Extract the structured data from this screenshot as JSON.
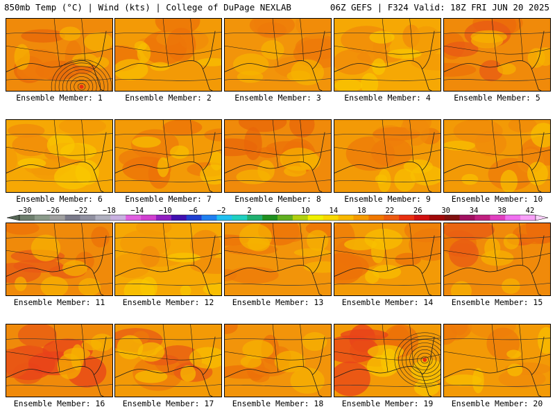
{
  "header": {
    "left": "850mb Temp (°C) | Wind (kts) | College of DuPage NEXLAB",
    "right": "06Z GEFS | F324 Valid: 18Z FRI JUN 20 2025"
  },
  "members": [
    {
      "label": "Ensemble Member: 1",
      "base": "#f08a0a",
      "warm": [
        "#e8650a",
        "#ee7a0a"
      ],
      "cool": "#f7b400",
      "low": true
    },
    {
      "label": "Ensemble Member: 2",
      "base": "#f39a06",
      "warm": [
        "#ec7008",
        "#f08a0a"
      ],
      "cool": "#f8c000",
      "low": false
    },
    {
      "label": "Ensemble Member: 3",
      "base": "#f2940a",
      "warm": [
        "#ee7a0a",
        "#f08a0a"
      ],
      "cool": "#f7b400",
      "low": false
    },
    {
      "label": "Ensemble Member: 4",
      "base": "#f6a804",
      "warm": [
        "#f08a0a",
        "#f39a06"
      ],
      "cool": "#f9c800",
      "low": false
    },
    {
      "label": "Ensemble Member: 5",
      "base": "#f08a0a",
      "warm": [
        "#e85a14",
        "#ec7008"
      ],
      "cool": "#f7b400",
      "low": false
    },
    {
      "label": "Ensemble Member: 6",
      "base": "#f6a804",
      "warm": [
        "#f39a06",
        "#f08a0a"
      ],
      "cool": "#f9c800",
      "low": false
    },
    {
      "label": "Ensemble Member: 7",
      "base": "#f39a06",
      "warm": [
        "#ee7a0a",
        "#ec7008"
      ],
      "cool": "#f8c000",
      "low": false
    },
    {
      "label": "Ensemble Member: 8",
      "base": "#f08a0a",
      "warm": [
        "#e8650a",
        "#ec7008"
      ],
      "cool": "#f7b400",
      "low": false
    },
    {
      "label": "Ensemble Member: 9",
      "base": "#f39a06",
      "warm": [
        "#ee7a0a",
        "#f08a0a"
      ],
      "cool": "#f8c000",
      "low": false
    },
    {
      "label": "Ensemble Member: 10",
      "base": "#f39a06",
      "warm": [
        "#f08a0a",
        "#ee7a0a"
      ],
      "cool": "#f8c000",
      "low": false
    },
    {
      "label": "Ensemble Member: 11",
      "base": "#f08a0a",
      "warm": [
        "#e85a14",
        "#ec7008"
      ],
      "cool": "#f7b400",
      "low": false
    },
    {
      "label": "Ensemble Member: 12",
      "base": "#f6a804",
      "warm": [
        "#f39a06",
        "#f08a0a"
      ],
      "cool": "#f9c800",
      "low": false
    },
    {
      "label": "Ensemble Member: 13",
      "base": "#f2940a",
      "warm": [
        "#ee7a0a",
        "#ec7008"
      ],
      "cool": "#f7b400",
      "low": false
    },
    {
      "label": "Ensemble Member: 14",
      "base": "#f39a06",
      "warm": [
        "#ee7a0a",
        "#ec7008"
      ],
      "cool": "#f8c000",
      "low": false
    },
    {
      "label": "Ensemble Member: 15",
      "base": "#f08a0a",
      "warm": [
        "#e85a14",
        "#ec7008"
      ],
      "cool": "#f7b400",
      "low": false
    },
    {
      "label": "Ensemble Member: 16",
      "base": "#f08a0a",
      "warm": [
        "#e8421a",
        "#e85a14"
      ],
      "cool": "#f7b400",
      "low": false
    },
    {
      "label": "Ensemble Member: 17",
      "base": "#f39a06",
      "warm": [
        "#e85a14",
        "#ee7a0a"
      ],
      "cool": "#f8c000",
      "low": false
    },
    {
      "label": "Ensemble Member: 18",
      "base": "#f2940a",
      "warm": [
        "#ec7008",
        "#ee7a0a"
      ],
      "cool": "#f7b400",
      "low": false
    },
    {
      "label": "Ensemble Member: 19",
      "base": "#f39a06",
      "warm": [
        "#e8421a",
        "#ec7008"
      ],
      "cool": "#f9c800",
      "low": true
    },
    {
      "label": "Ensemble Member: 20",
      "base": "#f39a06",
      "warm": [
        "#ee7a0a",
        "#f08a0a"
      ],
      "cool": "#f8c000",
      "low": false
    }
  ],
  "colorbar": {
    "ticks": [
      "−30",
      "−26",
      "−22",
      "−18",
      "−14",
      "−10",
      "−6",
      "−2",
      "2",
      "6",
      "10",
      "14",
      "18",
      "22",
      "26",
      "30",
      "34",
      "38",
      "42"
    ],
    "colors": [
      "#6e7f6e",
      "#8a9a8a",
      "#a0a0a0",
      "#7a7a8a",
      "#9090a0",
      "#b0b0c0",
      "#c8b0e0",
      "#e060e0",
      "#d040d0",
      "#9020c0",
      "#4010b0",
      "#2040d0",
      "#2080f0",
      "#20c0f0",
      "#20d0c0",
      "#20b070",
      "#209020",
      "#60b020",
      "#b0d010",
      "#f0f000",
      "#f8d800",
      "#f8b800",
      "#f49a00",
      "#f07800",
      "#ec5a10",
      "#e83010",
      "#d01010",
      "#a00808",
      "#801010",
      "#a01060",
      "#c02080",
      "#e040c0",
      "#f070f0",
      "#f8a0f8"
    ]
  }
}
